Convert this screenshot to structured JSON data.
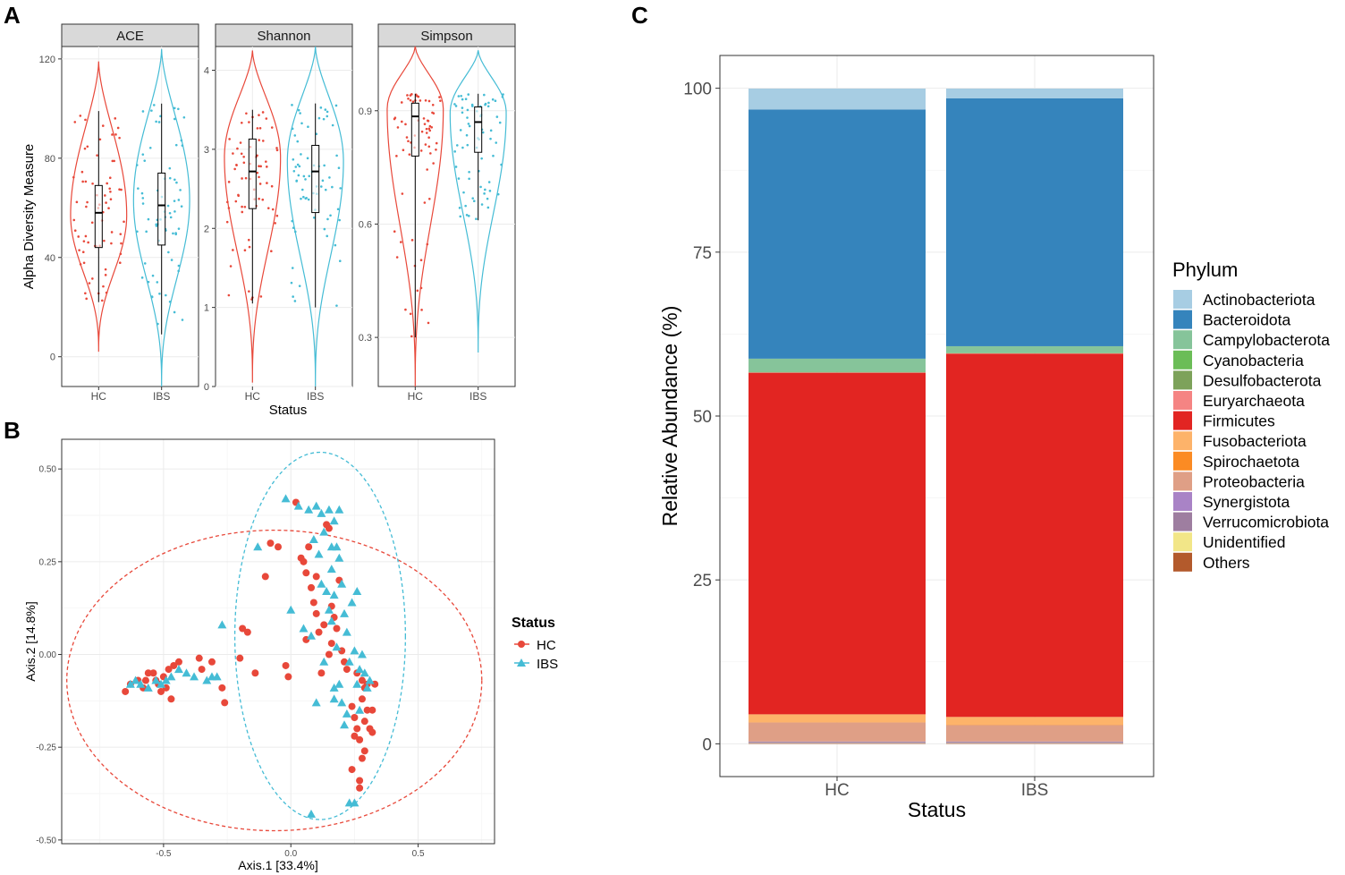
{
  "colors": {
    "hc": "#E8483A",
    "ibs": "#45BCD5",
    "strip_bg": "#D9D9D9",
    "grid": "#EBEBEB",
    "frame": "#333333"
  },
  "panels": {
    "a_label": "A",
    "b_label": "B",
    "c_label": "C"
  },
  "chart_data": [
    {
      "id": "A",
      "type": "violin",
      "title": "",
      "xlabel": "Status",
      "ylabel": "Alpha Diversity Measure",
      "categories": [
        "HC",
        "IBS"
      ],
      "facets": [
        {
          "name": "ACE",
          "ylim": [
            -12,
            125
          ],
          "yticks": [
            0,
            40,
            80,
            120
          ],
          "ytick_labels": [
            "0",
            "40",
            "80",
            "120"
          ],
          "groups": [
            {
              "status": "HC",
              "min": 22,
              "q1": 44,
              "median": 58,
              "q3": 69,
              "max": 99,
              "vmin": 2,
              "vmax": 119,
              "mode": 57
            },
            {
              "status": "IBS",
              "min": 9,
              "q1": 45,
              "median": 61,
              "q3": 74,
              "max": 102,
              "vmin": -12,
              "vmax": 124,
              "mode": 63
            }
          ]
        },
        {
          "name": "Shannon",
          "ylim": [
            0,
            4.3
          ],
          "yticks": [
            0,
            1,
            2,
            3,
            4
          ],
          "ytick_labels": [
            "0",
            "1",
            "2",
            "3",
            "4"
          ],
          "groups": [
            {
              "status": "HC",
              "min": 1.05,
              "q1": 2.25,
              "median": 2.72,
              "q3": 3.13,
              "max": 3.5,
              "vmin": 0.05,
              "vmax": 4.25,
              "mode": 2.9
            },
            {
              "status": "IBS",
              "min": 1.0,
              "q1": 2.2,
              "median": 2.72,
              "q3": 3.05,
              "max": 3.58,
              "vmin": 0.0,
              "vmax": 4.3,
              "mode": 2.85
            }
          ]
        },
        {
          "name": "Simpson",
          "ylim": [
            0.17,
            1.07
          ],
          "yticks": [
            0.3,
            0.6,
            0.9
          ],
          "ytick_labels": [
            "0.3",
            "0.6",
            "0.9"
          ],
          "groups": [
            {
              "status": "HC",
              "min": 0.3,
              "q1": 0.78,
              "median": 0.885,
              "q3": 0.92,
              "max": 0.945,
              "vmin": 0.17,
              "vmax": 1.07,
              "mode": 0.905
            },
            {
              "status": "IBS",
              "min": 0.61,
              "q1": 0.79,
              "median": 0.87,
              "q3": 0.91,
              "max": 0.945,
              "vmin": 0.26,
              "vmax": 1.06,
              "mode": 0.895
            }
          ]
        }
      ]
    },
    {
      "id": "B",
      "type": "scatter",
      "title": "",
      "xlabel": "Axis.1   [33.4%]",
      "ylabel": "Axis.2   [14.8%]",
      "xlim": [
        -0.9,
        0.8
      ],
      "ylim": [
        -0.51,
        0.58
      ],
      "xticks": [
        -0.5,
        0.0,
        0.5
      ],
      "xtick_labels": [
        "-0.5",
        "0.0",
        "0.5"
      ],
      "yticks": [
        -0.5,
        -0.25,
        0.0,
        0.25,
        0.5
      ],
      "ytick_labels": [
        "-0.50",
        "-0.25",
        "0.00",
        "0.25",
        "0.50"
      ],
      "legend": {
        "title": "Status",
        "placement": "right"
      },
      "series": [
        {
          "name": "HC",
          "marker": "circle",
          "ellipse": {
            "cx": -0.065,
            "cy": -0.07,
            "rx": 0.815,
            "ry": 0.405
          },
          "points": [
            [
              -0.65,
              -0.1
            ],
            [
              -0.63,
              -0.08
            ],
            [
              -0.6,
              -0.07
            ],
            [
              -0.58,
              -0.09
            ],
            [
              -0.57,
              -0.07
            ],
            [
              -0.56,
              -0.05
            ],
            [
              -0.54,
              -0.05
            ],
            [
              -0.53,
              -0.07
            ],
            [
              -0.52,
              -0.08
            ],
            [
              -0.5,
              -0.06
            ],
            [
              -0.49,
              -0.09
            ],
            [
              -0.48,
              -0.04
            ],
            [
              -0.51,
              -0.1
            ],
            [
              -0.47,
              -0.12
            ],
            [
              -0.46,
              -0.03
            ],
            [
              -0.44,
              -0.02
            ],
            [
              -0.36,
              -0.01
            ],
            [
              -0.35,
              -0.04
            ],
            [
              -0.31,
              -0.02
            ],
            [
              -0.27,
              -0.09
            ],
            [
              -0.26,
              -0.13
            ],
            [
              -0.2,
              -0.01
            ],
            [
              -0.19,
              0.07
            ],
            [
              -0.17,
              0.06
            ],
            [
              -0.14,
              -0.05
            ],
            [
              -0.1,
              0.21
            ],
            [
              -0.08,
              0.3
            ],
            [
              -0.05,
              0.29
            ],
            [
              -0.02,
              -0.03
            ],
            [
              -0.01,
              -0.06
            ],
            [
              0.02,
              0.41
            ],
            [
              0.04,
              0.26
            ],
            [
              0.05,
              0.25
            ],
            [
              0.06,
              0.22
            ],
            [
              0.06,
              0.04
            ],
            [
              0.07,
              0.29
            ],
            [
              0.08,
              0.18
            ],
            [
              0.09,
              0.14
            ],
            [
              0.1,
              0.21
            ],
            [
              0.1,
              0.11
            ],
            [
              0.11,
              0.06
            ],
            [
              0.12,
              -0.05
            ],
            [
              0.13,
              0.08
            ],
            [
              0.14,
              0.35
            ],
            [
              0.15,
              0.34
            ],
            [
              0.15,
              0.0
            ],
            [
              0.16,
              0.13
            ],
            [
              0.16,
              0.03
            ],
            [
              0.17,
              0.1
            ],
            [
              0.18,
              0.07
            ],
            [
              0.19,
              0.2
            ],
            [
              0.2,
              0.01
            ],
            [
              0.21,
              -0.02
            ],
            [
              0.22,
              -0.04
            ],
            [
              0.24,
              -0.14
            ],
            [
              0.24,
              -0.31
            ],
            [
              0.25,
              -0.17
            ],
            [
              0.25,
              -0.22
            ],
            [
              0.26,
              -0.05
            ],
            [
              0.26,
              -0.2
            ],
            [
              0.27,
              -0.23
            ],
            [
              0.27,
              -0.34
            ],
            [
              0.27,
              -0.36
            ],
            [
              0.28,
              -0.07
            ],
            [
              0.28,
              -0.12
            ],
            [
              0.28,
              -0.28
            ],
            [
              0.29,
              -0.09
            ],
            [
              0.29,
              -0.18
            ],
            [
              0.29,
              -0.26
            ],
            [
              0.3,
              -0.08
            ],
            [
              0.3,
              -0.15
            ],
            [
              0.31,
              -0.2
            ],
            [
              0.32,
              -0.15
            ],
            [
              0.32,
              -0.21
            ],
            [
              0.33,
              -0.08
            ]
          ]
        },
        {
          "name": "IBS",
          "marker": "triangle",
          "ellipse": {
            "cx": 0.115,
            "cy": 0.05,
            "rx": 0.335,
            "ry": 0.495
          },
          "points": [
            [
              -0.63,
              -0.08
            ],
            [
              -0.61,
              -0.07
            ],
            [
              -0.59,
              -0.08
            ],
            [
              -0.56,
              -0.09
            ],
            [
              -0.53,
              -0.07
            ],
            [
              -0.51,
              -0.08
            ],
            [
              -0.49,
              -0.07
            ],
            [
              -0.47,
              -0.06
            ],
            [
              -0.44,
              -0.04
            ],
            [
              -0.41,
              -0.05
            ],
            [
              -0.38,
              -0.06
            ],
            [
              -0.33,
              -0.07
            ],
            [
              -0.31,
              -0.06
            ],
            [
              -0.29,
              -0.06
            ],
            [
              -0.27,
              0.08
            ],
            [
              -0.13,
              0.29
            ],
            [
              -0.02,
              0.42
            ],
            [
              0.0,
              0.12
            ],
            [
              0.03,
              0.4
            ],
            [
              0.05,
              0.07
            ],
            [
              0.07,
              0.39
            ],
            [
              0.08,
              0.05
            ],
            [
              0.09,
              0.31
            ],
            [
              0.1,
              0.4
            ],
            [
              0.1,
              -0.13
            ],
            [
              0.11,
              0.27
            ],
            [
              0.12,
              0.19
            ],
            [
              0.12,
              0.38
            ],
            [
              0.13,
              0.33
            ],
            [
              0.13,
              -0.02
            ],
            [
              0.14,
              0.17
            ],
            [
              0.15,
              0.39
            ],
            [
              0.15,
              0.12
            ],
            [
              0.16,
              0.23
            ],
            [
              0.16,
              0.09
            ],
            [
              0.17,
              0.36
            ],
            [
              0.17,
              0.16
            ],
            [
              0.18,
              0.29
            ],
            [
              0.18,
              0.02
            ],
            [
              0.19,
              0.39
            ],
            [
              0.19,
              0.26
            ],
            [
              0.2,
              0.19
            ],
            [
              0.21,
              0.11
            ],
            [
              0.22,
              0.06
            ],
            [
              0.22,
              -0.16
            ],
            [
              0.23,
              -0.02
            ],
            [
              0.23,
              -0.4
            ],
            [
              0.24,
              0.14
            ],
            [
              0.25,
              0.01
            ],
            [
              0.25,
              -0.4
            ],
            [
              0.26,
              -0.08
            ],
            [
              0.26,
              0.17
            ],
            [
              0.27,
              -0.15
            ],
            [
              0.27,
              -0.04
            ],
            [
              0.28,
              0.0
            ],
            [
              0.29,
              -0.05
            ],
            [
              0.3,
              -0.09
            ],
            [
              0.31,
              -0.07
            ],
            [
              0.08,
              -0.43
            ],
            [
              0.17,
              -0.09
            ],
            [
              0.19,
              -0.08
            ],
            [
              0.2,
              -0.13
            ],
            [
              0.21,
              -0.19
            ],
            [
              0.17,
              -0.12
            ],
            [
              0.16,
              0.29
            ]
          ]
        }
      ]
    },
    {
      "id": "C",
      "type": "bar",
      "stacked": true,
      "title": "",
      "xlabel": "Status",
      "ylabel": "Relative Abundance (%)",
      "ylim": [
        -5,
        105
      ],
      "yticks": [
        0,
        25,
        50,
        75,
        100
      ],
      "ytick_labels": [
        "0",
        "25",
        "50",
        "75",
        "100"
      ],
      "categories": [
        "HC",
        "IBS"
      ],
      "legend": {
        "title": "Phylum",
        "placement": "right"
      },
      "series": [
        {
          "name": "Others",
          "color": "#B35A2C",
          "values": [
            0.05,
            0.05
          ]
        },
        {
          "name": "Unidentified",
          "color": "#F2E688",
          "values": [
            0.05,
            0.05
          ]
        },
        {
          "name": "Verrucomicrobiota",
          "color": "#9E7EA0",
          "values": [
            0.2,
            0.2
          ]
        },
        {
          "name": "Synergistota",
          "color": "#A983C6",
          "values": [
            0.05,
            0.05
          ]
        },
        {
          "name": "Proteobacteria",
          "color": "#DF9F86",
          "values": [
            2.9,
            2.5
          ]
        },
        {
          "name": "Spirochaetota",
          "color": "#FB8B23",
          "values": [
            0.05,
            0.05
          ]
        },
        {
          "name": "Fusobacteriota",
          "color": "#FDB36A",
          "values": [
            1.2,
            1.2
          ]
        },
        {
          "name": "Firmicutes",
          "color": "#E22522",
          "values": [
            52.1,
            55.4
          ]
        },
        {
          "name": "Euryarchaeota",
          "color": "#F58483",
          "values": [
            0.05,
            0.05
          ]
        },
        {
          "name": "Desulfobacterota",
          "color": "#7DA25A",
          "values": [
            0.05,
            0.05
          ]
        },
        {
          "name": "Cyanobacteria",
          "color": "#6BBD57",
          "values": [
            0.05,
            0.05
          ]
        },
        {
          "name": "Campylobacterota",
          "color": "#86C49A",
          "values": [
            2.0,
            1.0
          ]
        },
        {
          "name": "Bacteroidota",
          "color": "#3584BC",
          "values": [
            38.0,
            37.8
          ]
        },
        {
          "name": "Actinobacteriota",
          "color": "#A7CDE3",
          "values": [
            3.2,
            1.5
          ]
        }
      ],
      "legend_order": [
        "Actinobacteriota",
        "Bacteroidota",
        "Campylobacterota",
        "Cyanobacteria",
        "Desulfobacterota",
        "Euryarchaeota",
        "Firmicutes",
        "Fusobacteriota",
        "Spirochaetota",
        "Proteobacteria",
        "Synergistota",
        "Verrucomicrobiota",
        "Unidentified",
        "Others"
      ]
    }
  ]
}
